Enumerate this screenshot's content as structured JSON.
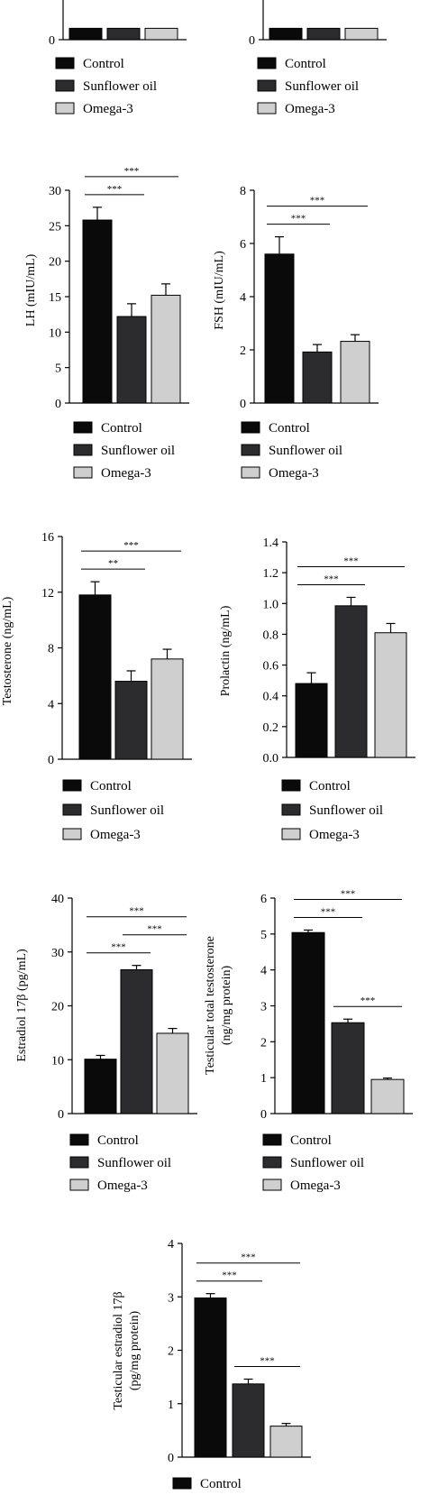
{
  "colors": {
    "control": "#0a0a0a",
    "sunflower": "#2c2c2e",
    "omega": "#cfcfcf",
    "axis": "#000000",
    "sig": "#000000"
  },
  "chart_data": [
    {
      "type": "bar",
      "panel": "top-left (cropped)",
      "categories": [
        "Control",
        "Sunflower oil",
        "Omega-3"
      ],
      "ylabel": "",
      "yticks": [
        "0"
      ],
      "ylim": [
        0,
        1
      ],
      "values": [
        0.15,
        0.15,
        0.15
      ],
      "errors": [
        0,
        0,
        0
      ],
      "significance": [],
      "legend": [
        "Control",
        "Sunflower oil",
        "Omega-3"
      ]
    },
    {
      "type": "bar",
      "panel": "top-right (cropped)",
      "categories": [
        "Control",
        "Sunflower oil",
        "Omega-3"
      ],
      "ylabel": "",
      "yticks": [
        "0"
      ],
      "ylim": [
        0,
        1
      ],
      "values": [
        0.15,
        0.15,
        0.15
      ],
      "errors": [
        0,
        0,
        0
      ],
      "significance": [],
      "legend": [
        "Control",
        "Sunflower oil",
        "Omega-3"
      ]
    },
    {
      "type": "bar",
      "categories": [
        "Control",
        "Sunflower oil",
        "Omega-3"
      ],
      "ylabel": "LH (mIU/mL)",
      "yticks": [
        "0",
        "5",
        "10",
        "15",
        "20",
        "25",
        "30"
      ],
      "ylim": [
        0,
        30
      ],
      "values": [
        25.8,
        12.2,
        15.2
      ],
      "errors": [
        1.8,
        1.8,
        1.6
      ],
      "significance": [
        {
          "from": 0,
          "to": 1,
          "label": "***"
        },
        {
          "from": 0,
          "to": 2,
          "label": "***"
        }
      ],
      "legend": [
        "Control",
        "Sunflower oil",
        "Omega-3"
      ]
    },
    {
      "type": "bar",
      "categories": [
        "Control",
        "Sunflower oil",
        "Omega-3"
      ],
      "ylabel": "FSH (mIU/mL)",
      "yticks": [
        "0",
        "2",
        "4",
        "6",
        "8"
      ],
      "ylim": [
        0,
        8
      ],
      "values": [
        5.6,
        1.92,
        2.32
      ],
      "errors": [
        0.65,
        0.28,
        0.25
      ],
      "significance": [
        {
          "from": 0,
          "to": 1,
          "label": "***"
        },
        {
          "from": 0,
          "to": 2,
          "label": "***"
        }
      ],
      "legend": [
        "Control",
        "Sunflower oil",
        "Omega-3"
      ]
    },
    {
      "type": "bar",
      "categories": [
        "Control",
        "Sunflower oil",
        "Omega-3"
      ],
      "ylabel": "Testosterone (ng/mL)",
      "yticks": [
        "0",
        "4",
        "8",
        "12",
        "16"
      ],
      "ylim": [
        0,
        16
      ],
      "values": [
        11.8,
        5.6,
        7.2
      ],
      "errors": [
        0.95,
        0.75,
        0.7
      ],
      "significance": [
        {
          "from": 0,
          "to": 1,
          "label": "**"
        },
        {
          "from": 0,
          "to": 2,
          "label": "***"
        }
      ],
      "legend": [
        "Control",
        "Sunflower oil",
        "Omega-3"
      ]
    },
    {
      "type": "bar",
      "categories": [
        "Control",
        "Sunflower oil",
        "Omega-3"
      ],
      "ylabel": "Prolactin (ng/mL)",
      "yticks": [
        "0.0",
        "0.2",
        "0.4",
        "0.6",
        "0.8",
        "1.0",
        "1.2",
        "1.4"
      ],
      "ylim": [
        0,
        1.4
      ],
      "values": [
        0.48,
        0.985,
        0.81
      ],
      "errors": [
        0.07,
        0.055,
        0.06
      ],
      "significance": [
        {
          "from": 0,
          "to": 1,
          "label": "***"
        },
        {
          "from": 0,
          "to": 2,
          "label": "***"
        }
      ],
      "legend": [
        "Control",
        "Sunflower oil",
        "Omega-3"
      ]
    },
    {
      "type": "bar",
      "categories": [
        "Control",
        "Sunflower oil",
        "Omega-3"
      ],
      "ylabel": "Estradiol 17β (pg/mL)",
      "yticks": [
        "0",
        "10",
        "20",
        "30",
        "40"
      ],
      "ylim": [
        0,
        40
      ],
      "values": [
        10.1,
        26.7,
        14.9
      ],
      "errors": [
        0.7,
        0.8,
        0.9
      ],
      "significance": [
        {
          "from": 0,
          "to": 1,
          "label": "***"
        },
        {
          "from": 0,
          "to": 2,
          "label": "***"
        },
        {
          "from": 1,
          "to": 2,
          "label": "***"
        }
      ],
      "legend": [
        "Control",
        "Sunflower oil",
        "Omega-3"
      ]
    },
    {
      "type": "bar",
      "categories": [
        "Control",
        "Sunflower oil",
        "Omega-3"
      ],
      "ylabel": "Testicular total testosterone (ng/mg protein)",
      "yticks": [
        "0",
        "1",
        "2",
        "3",
        "4",
        "5",
        "6"
      ],
      "ylim": [
        0,
        6
      ],
      "values": [
        5.04,
        2.53,
        0.95
      ],
      "errors": [
        0.07,
        0.1,
        0.04
      ],
      "significance": [
        {
          "from": 0,
          "to": 1,
          "label": "***"
        },
        {
          "from": 0,
          "to": 2,
          "label": "***"
        },
        {
          "from": 1,
          "to": 2,
          "label": "***"
        }
      ],
      "legend": [
        "Control",
        "Sunflower oil",
        "Omega-3"
      ]
    },
    {
      "type": "bar",
      "categories": [
        "Control",
        "Sunflower oil",
        "Omega-3"
      ],
      "ylabel": "Testicular estradiol 17β (pg/mg protein)",
      "yticks": [
        "0",
        "1",
        "2",
        "3",
        "4"
      ],
      "ylim": [
        0,
        4
      ],
      "values": [
        2.98,
        1.37,
        0.58
      ],
      "errors": [
        0.08,
        0.09,
        0.05
      ],
      "significance": [
        {
          "from": 0,
          "to": 1,
          "label": "***"
        },
        {
          "from": 0,
          "to": 2,
          "label": "***"
        },
        {
          "from": 1,
          "to": 2,
          "label": "***"
        }
      ],
      "legend": [
        "Control"
      ]
    }
  ]
}
